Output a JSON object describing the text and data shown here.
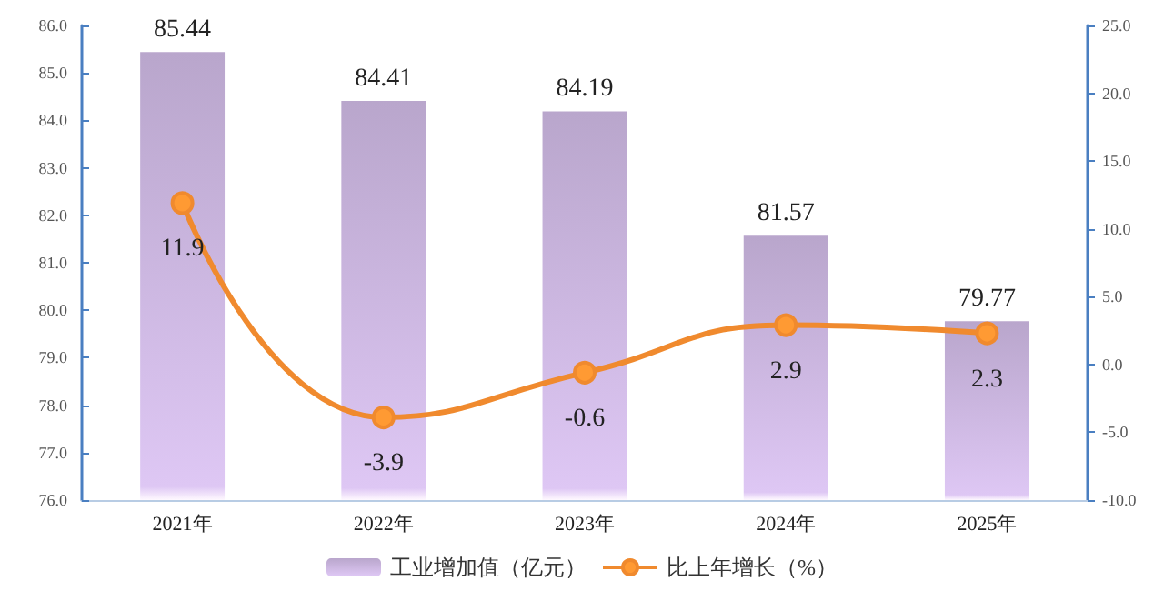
{
  "chart_data": {
    "type": "bar",
    "categories": [
      "2021年",
      "2022年",
      "2023年",
      "2024年",
      "2025年"
    ],
    "series": [
      {
        "name": "工业增加值（亿元）",
        "color": "#b9a6cc",
        "values": [
          85.44,
          84.41,
          84.19,
          81.57,
          79.77
        ]
      },
      {
        "name": "比上年增长（%）",
        "type": "line",
        "axis": "y2",
        "color": "#f08a2e",
        "values": [
          11.9,
          -3.9,
          -0.6,
          2.9,
          2.3
        ]
      }
    ],
    "data_labels": true,
    "ylim": [
      76,
      86
    ],
    "yticks": [
      {
        "value": 76,
        "label": "76.0"
      },
      {
        "value": 77,
        "label": "77.0"
      },
      {
        "value": 78,
        "label": "78.0"
      },
      {
        "value": 79,
        "label": "79.0"
      },
      {
        "value": 80,
        "label": "80.0"
      },
      {
        "value": 81,
        "label": "81.0"
      },
      {
        "value": 82,
        "label": "82.0"
      },
      {
        "value": 83,
        "label": "83.0"
      },
      {
        "value": 84,
        "label": "84.0"
      },
      {
        "value": 85,
        "label": "85.0"
      },
      {
        "value": 86,
        "label": "86.0"
      }
    ],
    "y2lim": [
      -10,
      25
    ],
    "y2ticks": [
      {
        "value": -10,
        "label": "-10.0"
      },
      {
        "value": -5,
        "label": "-5.0"
      },
      {
        "value": 0,
        "label": "0.0"
      },
      {
        "value": 5,
        "label": "5.0"
      },
      {
        "value": 10,
        "label": "10.0"
      },
      {
        "value": 15,
        "label": "15.0"
      },
      {
        "value": 20,
        "label": "20.0"
      },
      {
        "value": 25,
        "label": "25.0"
      }
    ],
    "legend": "bottom",
    "marker": "circle",
    "grid": false
  }
}
